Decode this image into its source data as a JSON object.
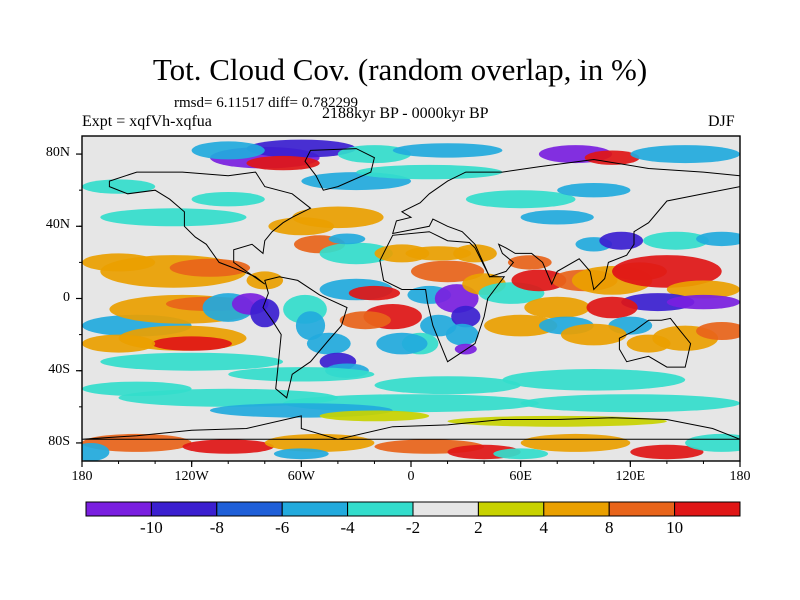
{
  "header": {
    "title": "Tot. Cloud Cov. (random overlap, in %)",
    "stats": "rmsd= 6.11517 diff= 0.782299",
    "expt": "Expt = xqfVh-xqfua",
    "period": "2188kyr BP - 0000kyr BP",
    "season": "DJF"
  },
  "axes": {
    "lat_labels": [
      "80N",
      "40N",
      "0",
      "40S",
      "80S"
    ],
    "lon_labels": [
      "180",
      "120W",
      "60W",
      "0",
      "60E",
      "120E",
      "180"
    ]
  },
  "colorbar": {
    "labels": [
      "-10",
      "-8",
      "-6",
      "-4",
      "-2",
      "2",
      "4",
      "8",
      "10"
    ],
    "colors": [
      "#7a1fe0",
      "#3b1fd0",
      "#1f5fd8",
      "#22aadd",
      "#33ddcc",
      "#e6e6e6",
      "#c8d200",
      "#eaa000",
      "#e8641a",
      "#e01616"
    ]
  },
  "map_colors": {
    "neutral": "#e6e6e6",
    "strong_positive": "#e01616",
    "positive": "#e8641a",
    "mild_positive": "#eaa000",
    "weak_positive": "#c8d200",
    "weak_negative": "#33ddcc",
    "mild_negative": "#22aadd",
    "negative": "#1f5fd8",
    "strong_negative": "#3b1fd0",
    "extreme_negative": "#7a1fe0",
    "coastline": "#000000"
  }
}
